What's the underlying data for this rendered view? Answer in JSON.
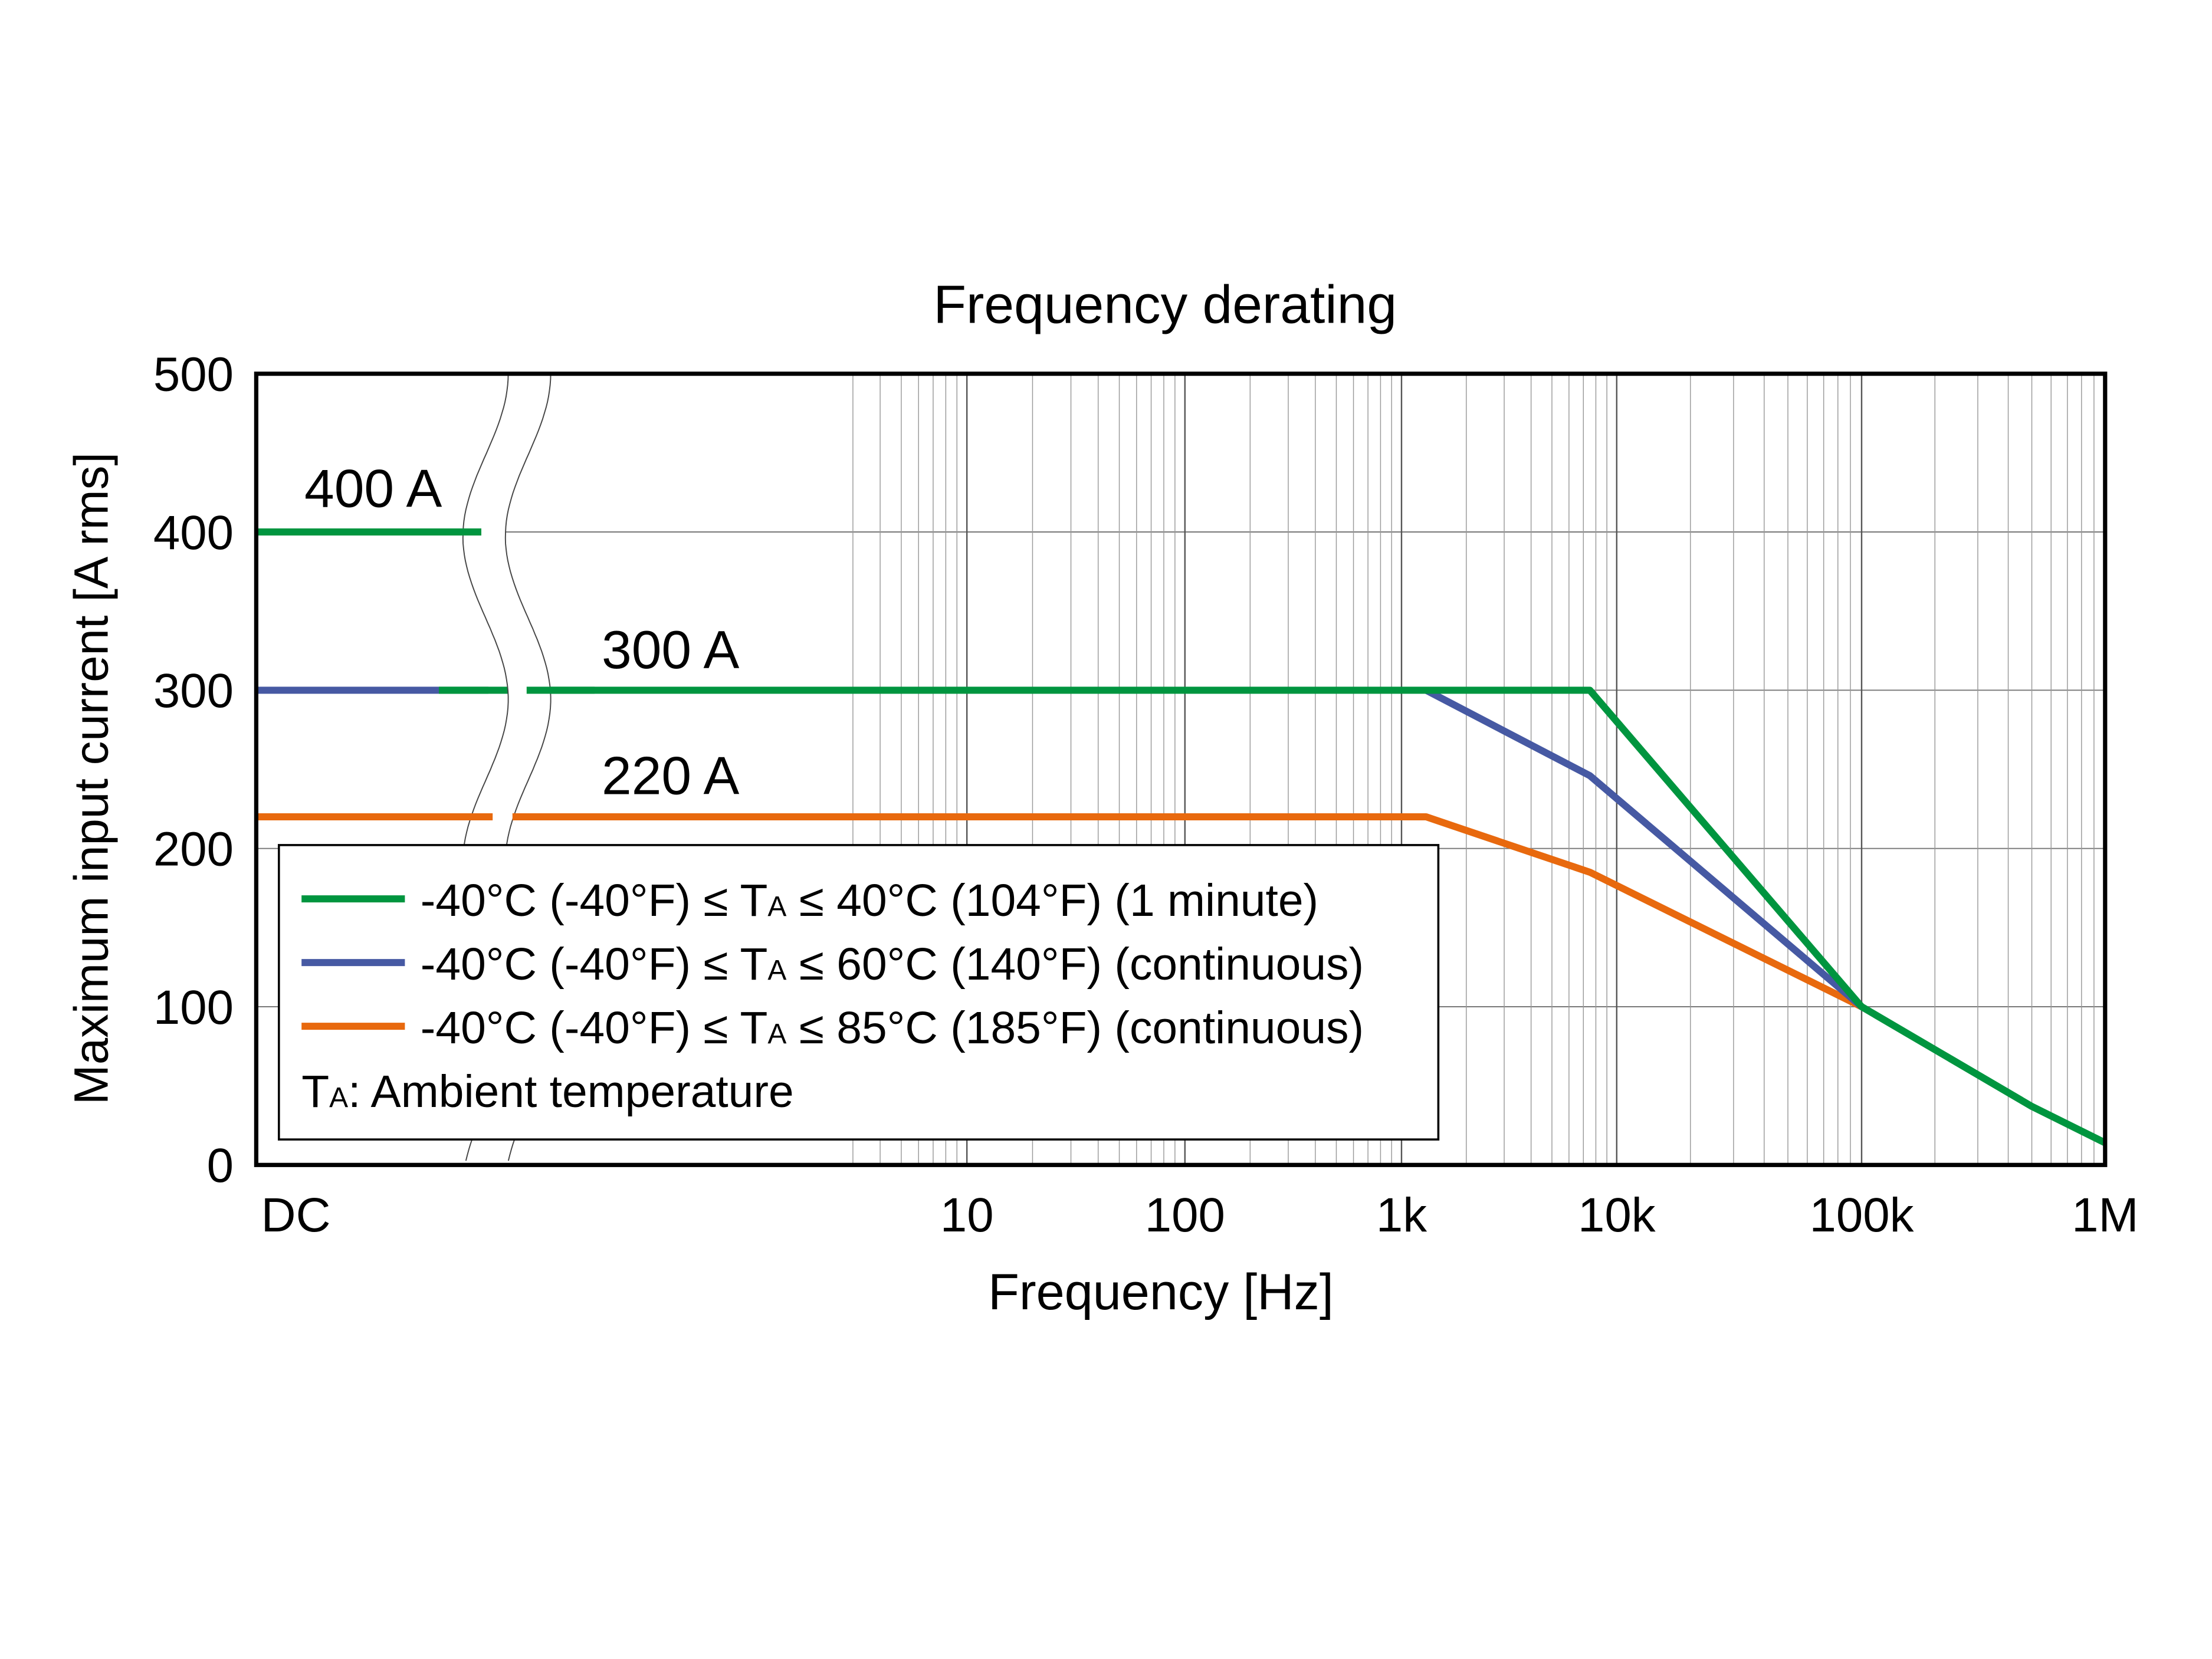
{
  "chart_data": {
    "type": "line",
    "title": "Frequency derating",
    "xlabel": "Frequency [Hz]",
    "ylabel": "Maximum input current [A rms]",
    "x_scale": "log with DC segment and axis break",
    "x_ticks": [
      "DC",
      "10",
      "100",
      "1k",
      "10k",
      "100k",
      "1M"
    ],
    "y_ticks": [
      "0",
      "100",
      "200",
      "300",
      "400",
      "500"
    ],
    "ylim": [
      0,
      500
    ],
    "xlim": [
      "DC",
      1000000
    ],
    "grid": true,
    "legend_placement": "bottom-left",
    "annotations": [
      "400 A",
      "300 A",
      "220 A"
    ],
    "legend_note": {
      "prefix": "T",
      "sub": "A",
      "text": ": Ambient temperature"
    },
    "series": [
      {
        "name": "-40°C (-40°F) ≤ TA ≤ 40°C (104°F) (1 minute)",
        "legend_parts": [
          "-40°C (-40°F) ≤ T",
          "A",
          " ≤ 40°C (104°F) (1 minute)"
        ],
        "color": "#00953f",
        "dc_value": 400,
        "points": [
          [
            1,
            300
          ],
          [
            7500,
            300
          ],
          [
            100000,
            100
          ],
          [
            500000,
            37
          ],
          [
            1000000,
            14
          ]
        ]
      },
      {
        "name": "-40°C (-40°F) ≤ TA ≤ 60°C (140°F) (continuous)",
        "legend_parts": [
          "-40°C (-40°F) ≤ T",
          "A",
          " ≤ 60°C (140°F) (continuous)"
        ],
        "color": "#4659a3",
        "dc_value": 300,
        "points": [
          [
            1300,
            300
          ],
          [
            7500,
            246
          ],
          [
            100000,
            100
          ]
        ]
      },
      {
        "name": "-40°C (-40°F) ≤ TA ≤ 85°C (185°F) (continuous)",
        "legend_parts": [
          "-40°C (-40°F) ≤ T",
          "A",
          " ≤ 85°C (185°F) (continuous)"
        ],
        "color": "#e8690e",
        "dc_value": 220,
        "points": [
          [
            1,
            220
          ],
          [
            1300,
            220
          ],
          [
            7500,
            185
          ],
          [
            100000,
            100
          ]
        ]
      }
    ]
  }
}
